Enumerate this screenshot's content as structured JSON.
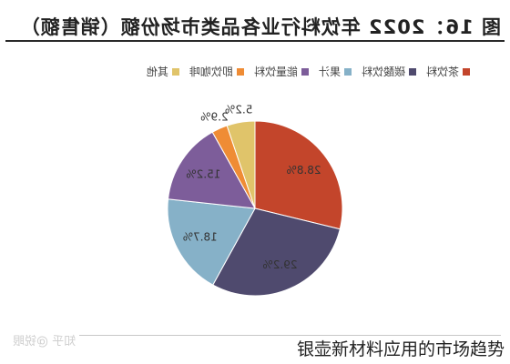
{
  "title": "图 16：2022 年饮料行业各品类市场份额（销售额）",
  "watermark": "知乎 @锐眼",
  "caption": "银壶新材料应用的市场趋势",
  "chart_data": {
    "type": "pie",
    "title": "图 16：2022 年饮料行业各品类市场份额（销售额）",
    "legend_position": "top",
    "series": [
      {
        "name": "茶饮料",
        "value": 28.8,
        "label": "28.8%",
        "color": "#c3452b"
      },
      {
        "name": "碳酸饮料",
        "value": 29.2,
        "label": "29.2%",
        "color": "#4f4a6e"
      },
      {
        "name": "果汁",
        "value": 18.7,
        "label": "18.7%",
        "color": "#86b1c8"
      },
      {
        "name": "能量饮料",
        "value": 15.2,
        "label": "15.2%",
        "color": "#7d5d9a"
      },
      {
        "name": "即饮咖啡",
        "value": 2.9,
        "label": "2.9%",
        "color": "#ef8c35"
      },
      {
        "name": "其他",
        "value": 5.2,
        "label": "5.2%",
        "color": "#e0c46a"
      }
    ]
  }
}
